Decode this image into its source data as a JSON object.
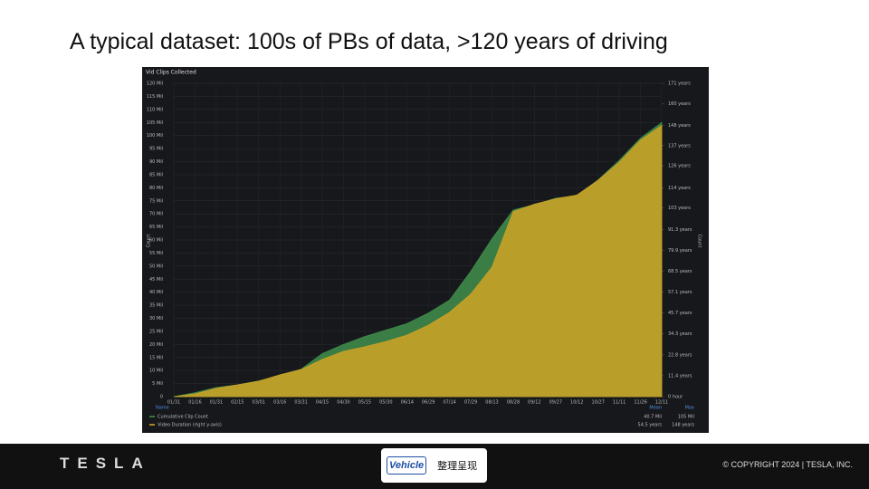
{
  "slide": {
    "title": "A typical dataset: 100s of PBs of data, >120 years of driving",
    "logo": "TESLA",
    "copyright": "© COPYRIGHT 2024 | TESLA, INC.",
    "watermark_brand": "Vehicle",
    "watermark_text": "整理呈现"
  },
  "chart_data": {
    "type": "area",
    "title": "Vid Clips Collected",
    "ylabel": "Count",
    "y2label": "Count",
    "categories": [
      "01/31",
      "01/16",
      "01/31",
      "02/15",
      "03/01",
      "03/16",
      "03/31",
      "04/15",
      "04/30",
      "05/15",
      "05/30",
      "06/14",
      "06/29",
      "07/14",
      "07/29",
      "08/13",
      "08/28",
      "09/12",
      "09/27",
      "10/12",
      "10/27",
      "11/11",
      "11/26",
      "12/11"
    ],
    "series": [
      {
        "name": "Cumulative Clip Count",
        "color": "#3f8a4a",
        "axis": "y",
        "mean": "40.7 Mil",
        "max": "105 Mil",
        "values": [
          0,
          1.5,
          3.5,
          4.5,
          6,
          8,
          10.5,
          16.5,
          20,
          23,
          25.5,
          28,
          32,
          37,
          48,
          60.5,
          71.5,
          73.5,
          76,
          77,
          83,
          90.5,
          99,
          105
        ]
      },
      {
        "name": "Video Duration (right y-axis)",
        "color": "#c9a227",
        "axis": "y2",
        "mean": "54.5 years",
        "max": "148 years",
        "values": [
          0,
          1.5,
          4.5,
          6.4,
          8.4,
          11.9,
          14.8,
          20.3,
          24.7,
          27.2,
          30.1,
          33.6,
          39,
          46,
          56,
          70.7,
          101,
          105,
          108,
          110,
          118,
          128,
          140,
          148
        ]
      }
    ],
    "legend_header": [
      "Name",
      "Mean",
      "Max"
    ],
    "ylim": [
      0,
      120
    ],
    "yticks": [
      {
        "value": 0,
        "label": "0"
      },
      {
        "value": 5,
        "label": "5 Mil"
      },
      {
        "value": 10,
        "label": "10 Mil"
      },
      {
        "value": 15,
        "label": "15 Mil"
      },
      {
        "value": 20,
        "label": "20 Mil"
      },
      {
        "value": 25,
        "label": "25 Mil"
      },
      {
        "value": 30,
        "label": "30 Mil"
      },
      {
        "value": 35,
        "label": "35 Mil"
      },
      {
        "value": 40,
        "label": "40 Mil"
      },
      {
        "value": 45,
        "label": "45 Mil"
      },
      {
        "value": 50,
        "label": "50 Mil"
      },
      {
        "value": 55,
        "label": "55 Mil"
      },
      {
        "value": 60,
        "label": "60 Mil"
      },
      {
        "value": 65,
        "label": "65 Mil"
      },
      {
        "value": 70,
        "label": "70 Mil"
      },
      {
        "value": 75,
        "label": "75 Mil"
      },
      {
        "value": 80,
        "label": "80 Mil"
      },
      {
        "value": 85,
        "label": "85 Mil"
      },
      {
        "value": 90,
        "label": "90 Mil"
      },
      {
        "value": 95,
        "label": "95 Mil"
      },
      {
        "value": 100,
        "label": "100 Mil"
      },
      {
        "value": 105,
        "label": "105 Mil"
      },
      {
        "value": 110,
        "label": "110 Mil"
      },
      {
        "value": 115,
        "label": "115 Mil"
      },
      {
        "value": 120,
        "label": "120 Mil"
      }
    ],
    "y2lim": [
      0,
      171
    ],
    "y2ticks": [
      {
        "value": 0,
        "label": "0 hour"
      },
      {
        "value": 11.4,
        "label": "11.4 years"
      },
      {
        "value": 22.8,
        "label": "22.8 years"
      },
      {
        "value": 34.3,
        "label": "34.3 years"
      },
      {
        "value": 45.7,
        "label": "45.7 years"
      },
      {
        "value": 57.1,
        "label": "57.1 years"
      },
      {
        "value": 68.5,
        "label": "68.5 years"
      },
      {
        "value": 79.9,
        "label": "79.9 years"
      },
      {
        "value": 91.3,
        "label": "91.3 years"
      },
      {
        "value": 103,
        "label": "103 years"
      },
      {
        "value": 114,
        "label": "114 years"
      },
      {
        "value": 126,
        "label": "126 years"
      },
      {
        "value": 137,
        "label": "137 years"
      },
      {
        "value": 148,
        "label": "148 years"
      },
      {
        "value": 160,
        "label": "160 years"
      },
      {
        "value": 171,
        "label": "171 years"
      }
    ],
    "grid": true
  }
}
